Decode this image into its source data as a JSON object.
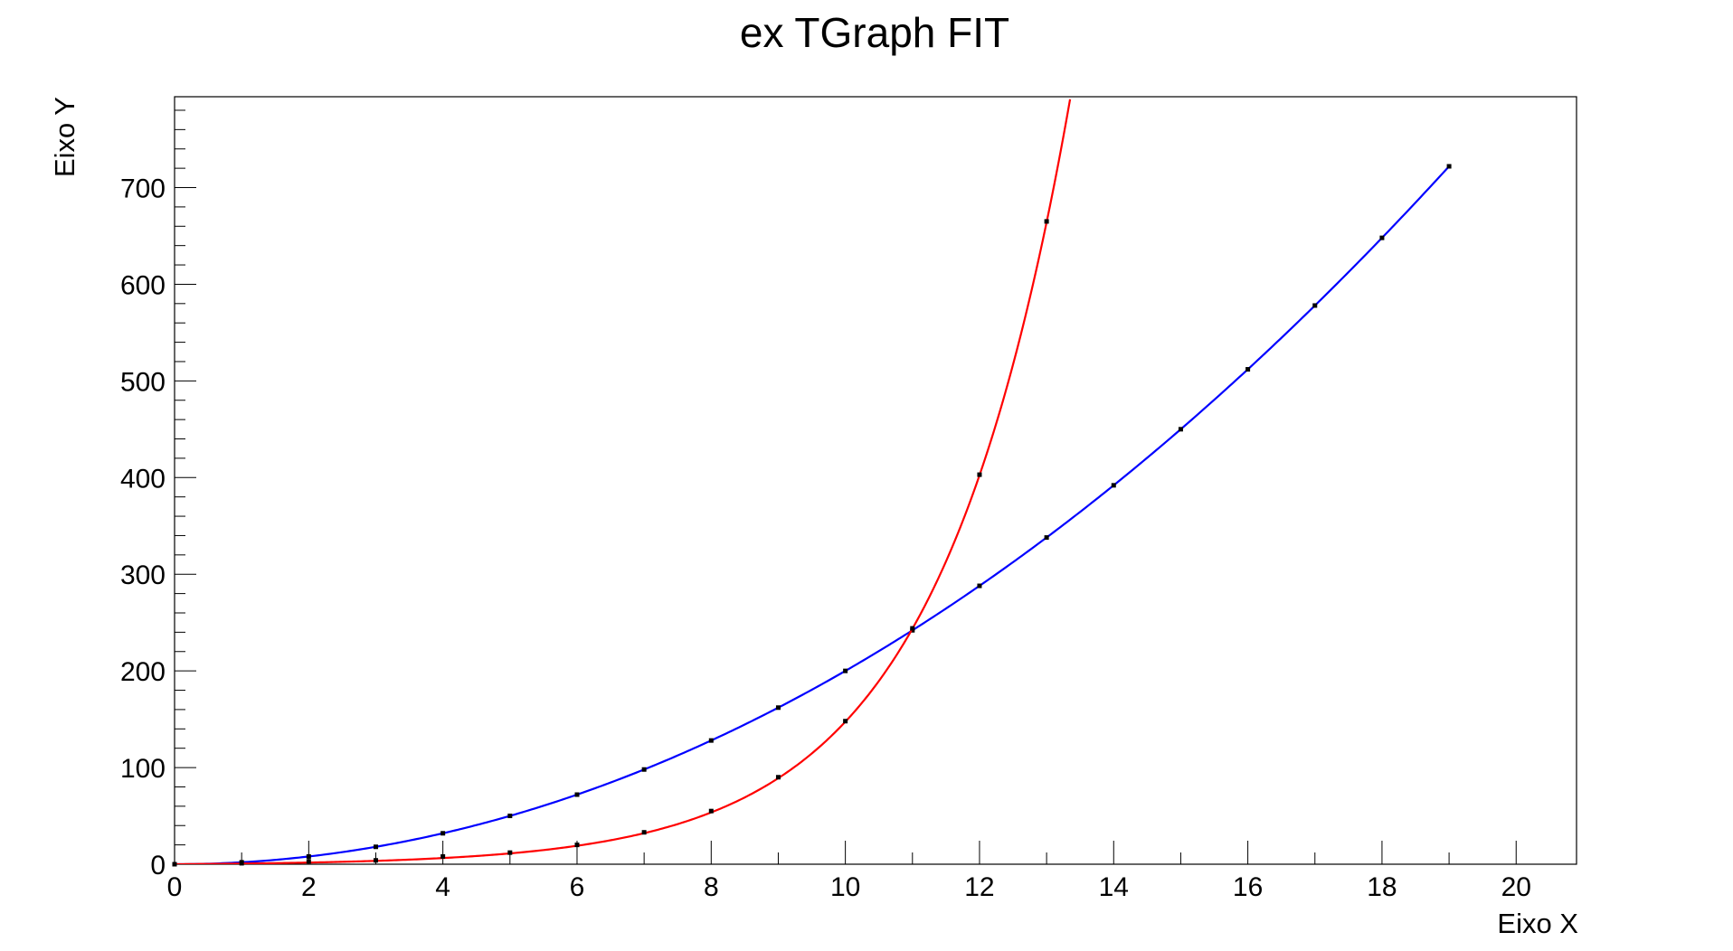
{
  "chart_data": {
    "type": "line",
    "title": "ex TGraph FIT",
    "xlabel": "Eixo X",
    "ylabel": "Eixo Y",
    "xlim": [
      0,
      20.9
    ],
    "ylim": [
      0,
      794
    ],
    "x_ticks": [
      0,
      2,
      4,
      6,
      8,
      10,
      12,
      14,
      16,
      18,
      20
    ],
    "y_ticks": [
      0,
      100,
      200,
      300,
      400,
      500,
      600,
      700
    ],
    "grid": false,
    "legend": "none",
    "series": [
      {
        "color": "#0000ff",
        "marker_color": "#000000",
        "x": [
          0,
          1,
          2,
          3,
          4,
          5,
          6,
          7,
          8,
          9,
          10,
          11,
          12,
          13,
          14,
          15,
          16,
          17,
          18,
          19
        ],
        "y": [
          0,
          2,
          8,
          18,
          32,
          50,
          72,
          98,
          128,
          162,
          200,
          242,
          288,
          338,
          392,
          450,
          512,
          578,
          648,
          722
        ],
        "fit": {
          "kind": "power",
          "a": 2,
          "b": 2,
          "x_range": [
            0,
            19
          ]
        }
      },
      {
        "color": "#ff0000",
        "marker_color": "#000000",
        "x": [
          0,
          1,
          2,
          3,
          4,
          5,
          6,
          7,
          8,
          9,
          10,
          11,
          12,
          13
        ],
        "y": [
          0,
          1,
          3,
          4,
          8,
          12,
          20,
          33,
          55,
          90,
          148,
          244,
          403,
          665
        ],
        "fit": {
          "kind": "exp",
          "a": 1,
          "b": 0.5,
          "x_range": [
            0,
            13.35
          ]
        }
      }
    ]
  }
}
